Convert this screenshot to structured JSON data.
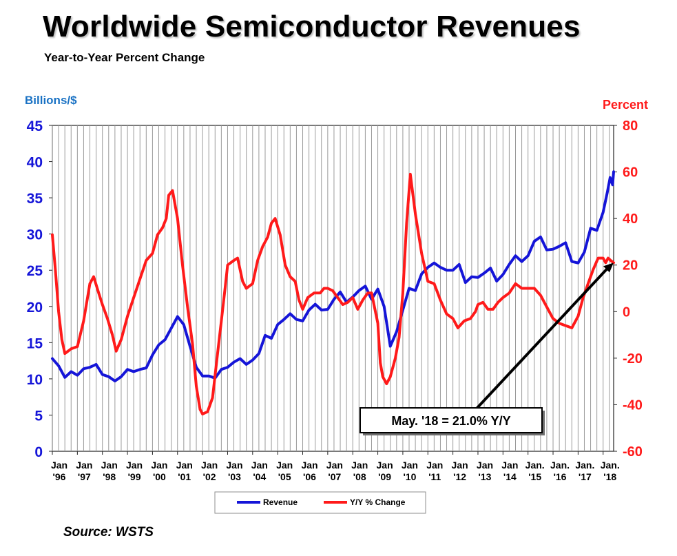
{
  "title": "Worldwide Semiconductor Revenues",
  "subtitle": "Year-to-Year Percent Change",
  "source": "Source: WSTS",
  "chart_data": {
    "type": "line",
    "left_axis": {
      "label": "Billions/$",
      "min": 0,
      "max": 45,
      "ticks": [
        0,
        5,
        10,
        15,
        20,
        25,
        30,
        35,
        40,
        45
      ],
      "color": "#1515d8"
    },
    "right_axis": {
      "label": "Percent",
      "min": -60,
      "max": 80,
      "ticks": [
        -60,
        -40,
        -20,
        0,
        20,
        40,
        60,
        80
      ],
      "color": "#ff1a1a"
    },
    "x_start": 1996.0,
    "x_end": 2018.42,
    "x_tick_labels": [
      [
        "Jan",
        "'96"
      ],
      [
        "Jan",
        "'97"
      ],
      [
        "Jan",
        "'98"
      ],
      [
        "Jan",
        "'99"
      ],
      [
        "Jan",
        "'00"
      ],
      [
        "Jan",
        "'01"
      ],
      [
        "Jan",
        "'02"
      ],
      [
        "Jan",
        "'03"
      ],
      [
        "Jan",
        "'04"
      ],
      [
        "Jan",
        "'05"
      ],
      [
        "Jan",
        "'06"
      ],
      [
        "Jan",
        "'07"
      ],
      [
        "Jan",
        "'08"
      ],
      [
        "Jan",
        "'09"
      ],
      [
        "Jan",
        "'10"
      ],
      [
        "Jan",
        "'11"
      ],
      [
        "Jan",
        "'12"
      ],
      [
        "Jan",
        "'13"
      ],
      [
        "Jan",
        "'14"
      ],
      [
        "Jan.",
        "'15"
      ],
      [
        "Jan.",
        "'16"
      ],
      [
        "Jan.",
        "'17"
      ],
      [
        "Jan.",
        "'18"
      ]
    ],
    "grid": "vertical",
    "series": [
      {
        "name": "Revenue",
        "axis": "left",
        "color": "#1515d8",
        "points": [
          [
            1996.0,
            12.8
          ],
          [
            1996.25,
            11.8
          ],
          [
            1996.5,
            10.2
          ],
          [
            1996.75,
            11.0
          ],
          [
            1997.0,
            10.5
          ],
          [
            1997.25,
            11.4
          ],
          [
            1997.5,
            11.6
          ],
          [
            1997.75,
            12.0
          ],
          [
            1998.0,
            10.6
          ],
          [
            1998.25,
            10.3
          ],
          [
            1998.5,
            9.7
          ],
          [
            1998.75,
            10.3
          ],
          [
            1999.0,
            11.3
          ],
          [
            1999.25,
            11.0
          ],
          [
            1999.5,
            11.3
          ],
          [
            1999.75,
            11.5
          ],
          [
            2000.0,
            13.3
          ],
          [
            2000.25,
            14.7
          ],
          [
            2000.5,
            15.4
          ],
          [
            2000.75,
            17.0
          ],
          [
            2001.0,
            18.6
          ],
          [
            2001.25,
            17.5
          ],
          [
            2001.5,
            14.5
          ],
          [
            2001.75,
            11.6
          ],
          [
            2002.0,
            10.4
          ],
          [
            2002.25,
            10.4
          ],
          [
            2002.5,
            10.1
          ],
          [
            2002.75,
            11.3
          ],
          [
            2003.0,
            11.6
          ],
          [
            2003.25,
            12.3
          ],
          [
            2003.5,
            12.8
          ],
          [
            2003.75,
            12.0
          ],
          [
            2004.0,
            12.6
          ],
          [
            2004.25,
            13.5
          ],
          [
            2004.5,
            16.0
          ],
          [
            2004.75,
            15.6
          ],
          [
            2005.0,
            17.5
          ],
          [
            2005.25,
            18.2
          ],
          [
            2005.5,
            19.0
          ],
          [
            2005.75,
            18.2
          ],
          [
            2006.0,
            18.0
          ],
          [
            2006.25,
            19.5
          ],
          [
            2006.5,
            20.3
          ],
          [
            2006.75,
            19.5
          ],
          [
            2007.0,
            19.6
          ],
          [
            2007.25,
            21.0
          ],
          [
            2007.5,
            22.0
          ],
          [
            2007.75,
            20.6
          ],
          [
            2008.0,
            21.3
          ],
          [
            2008.25,
            22.2
          ],
          [
            2008.5,
            22.8
          ],
          [
            2008.75,
            21.0
          ],
          [
            2009.0,
            22.4
          ],
          [
            2009.25,
            20.0
          ],
          [
            2009.5,
            14.5
          ],
          [
            2009.75,
            16.5
          ],
          [
            2010.0,
            19.5
          ],
          [
            2010.25,
            22.5
          ],
          [
            2010.5,
            22.2
          ],
          [
            2010.75,
            24.5
          ],
          [
            2011.0,
            25.4
          ],
          [
            2011.25,
            26.0
          ],
          [
            2011.5,
            25.4
          ],
          [
            2011.75,
            25.0
          ],
          [
            2012.0,
            25.0
          ],
          [
            2012.25,
            25.8
          ],
          [
            2012.5,
            23.3
          ],
          [
            2012.75,
            24.1
          ],
          [
            2013.0,
            24.0
          ],
          [
            2013.25,
            24.6
          ],
          [
            2013.5,
            25.3
          ],
          [
            2013.75,
            23.5
          ],
          [
            2014.0,
            24.4
          ],
          [
            2014.25,
            25.8
          ],
          [
            2014.5,
            27.0
          ],
          [
            2014.75,
            26.2
          ],
          [
            2015.0,
            27.0
          ],
          [
            2015.25,
            29.0
          ],
          [
            2015.5,
            29.6
          ],
          [
            2015.75,
            27.8
          ],
          [
            2016.0,
            27.9
          ],
          [
            2016.25,
            28.3
          ],
          [
            2016.5,
            28.8
          ],
          [
            2016.75,
            26.2
          ],
          [
            2017.0,
            26.0
          ],
          [
            2017.25,
            27.5
          ],
          [
            2017.5,
            30.8
          ],
          [
            2017.75,
            30.5
          ],
          [
            2018.0,
            33.0
          ],
          [
            2018.17,
            35.8
          ],
          [
            2018.28,
            37.8
          ],
          [
            2018.38,
            36.8
          ],
          [
            2018.42,
            38.6
          ]
        ]
      },
      {
        "name": "Y/Y % Change",
        "axis": "right",
        "color": "#ff1a1a",
        "points": [
          [
            1996.0,
            33
          ],
          [
            1996.12,
            18
          ],
          [
            1996.25,
            0
          ],
          [
            1996.38,
            -12
          ],
          [
            1996.5,
            -18
          ],
          [
            1996.75,
            -16
          ],
          [
            1997.0,
            -15
          ],
          [
            1997.25,
            -4
          ],
          [
            1997.5,
            12
          ],
          [
            1997.65,
            15
          ],
          [
            1997.85,
            8
          ],
          [
            1998.0,
            3
          ],
          [
            1998.2,
            -3
          ],
          [
            1998.4,
            -10
          ],
          [
            1998.55,
            -17
          ],
          [
            1998.75,
            -12
          ],
          [
            1999.0,
            -2
          ],
          [
            1999.25,
            6
          ],
          [
            1999.5,
            14
          ],
          [
            1999.75,
            22
          ],
          [
            2000.0,
            25
          ],
          [
            2000.2,
            33
          ],
          [
            2000.4,
            36
          ],
          [
            2000.55,
            40
          ],
          [
            2000.65,
            50
          ],
          [
            2000.8,
            52
          ],
          [
            2001.0,
            40
          ],
          [
            2001.2,
            20
          ],
          [
            2001.4,
            2
          ],
          [
            2001.6,
            -14
          ],
          [
            2001.75,
            -32
          ],
          [
            2001.9,
            -42
          ],
          [
            2002.0,
            -44
          ],
          [
            2002.2,
            -43
          ],
          [
            2002.4,
            -37
          ],
          [
            2002.6,
            -18
          ],
          [
            2002.75,
            -4
          ],
          [
            2002.9,
            10
          ],
          [
            2003.0,
            20
          ],
          [
            2003.25,
            22
          ],
          [
            2003.4,
            23
          ],
          [
            2003.6,
            13
          ],
          [
            2003.75,
            10
          ],
          [
            2004.0,
            12
          ],
          [
            2004.2,
            22
          ],
          [
            2004.4,
            28
          ],
          [
            2004.6,
            32
          ],
          [
            2004.75,
            38
          ],
          [
            2004.9,
            40
          ],
          [
            2005.1,
            33
          ],
          [
            2005.3,
            20
          ],
          [
            2005.5,
            15
          ],
          [
            2005.7,
            13
          ],
          [
            2005.85,
            5
          ],
          [
            2006.0,
            1
          ],
          [
            2006.2,
            6
          ],
          [
            2006.45,
            8
          ],
          [
            2006.7,
            8
          ],
          [
            2006.85,
            10
          ],
          [
            2007.0,
            10
          ],
          [
            2007.2,
            9
          ],
          [
            2007.4,
            6
          ],
          [
            2007.6,
            3
          ],
          [
            2007.8,
            4
          ],
          [
            2008.0,
            6
          ],
          [
            2008.2,
            1
          ],
          [
            2008.4,
            5
          ],
          [
            2008.6,
            8
          ],
          [
            2008.75,
            8
          ],
          [
            2009.0,
            -5
          ],
          [
            2009.1,
            -22
          ],
          [
            2009.2,
            -28
          ],
          [
            2009.35,
            -31
          ],
          [
            2009.5,
            -28
          ],
          [
            2009.7,
            -20
          ],
          [
            2009.85,
            -11
          ],
          [
            2010.0,
            8
          ],
          [
            2010.15,
            38
          ],
          [
            2010.3,
            59
          ],
          [
            2010.5,
            42
          ],
          [
            2010.75,
            25
          ],
          [
            2011.0,
            13
          ],
          [
            2011.25,
            12
          ],
          [
            2011.5,
            5
          ],
          [
            2011.75,
            -1
          ],
          [
            2012.0,
            -3
          ],
          [
            2012.2,
            -7
          ],
          [
            2012.45,
            -4
          ],
          [
            2012.7,
            -3
          ],
          [
            2012.9,
            0
          ],
          [
            2013.0,
            3
          ],
          [
            2013.2,
            4
          ],
          [
            2013.4,
            1
          ],
          [
            2013.6,
            1
          ],
          [
            2013.8,
            4
          ],
          [
            2014.0,
            6
          ],
          [
            2014.25,
            8
          ],
          [
            2014.5,
            12
          ],
          [
            2014.75,
            10
          ],
          [
            2015.0,
            10
          ],
          [
            2015.25,
            10
          ],
          [
            2015.5,
            7
          ],
          [
            2015.75,
            2
          ],
          [
            2016.0,
            -3
          ],
          [
            2016.25,
            -5
          ],
          [
            2016.5,
            -6
          ],
          [
            2016.75,
            -7
          ],
          [
            2017.0,
            -2
          ],
          [
            2017.2,
            6
          ],
          [
            2017.4,
            12
          ],
          [
            2017.6,
            18
          ],
          [
            2017.8,
            23
          ],
          [
            2018.0,
            23
          ],
          [
            2018.1,
            21
          ],
          [
            2018.2,
            23
          ],
          [
            2018.3,
            22
          ],
          [
            2018.42,
            21
          ]
        ]
      }
    ],
    "annotation": {
      "text": "May. '18 = 21.0% Y/Y",
      "x": 2018.42,
      "y": 21.0,
      "axis": "right"
    },
    "legend": {
      "placement": "bottom-center",
      "entries": [
        "Revenue",
        "Y/Y % Change"
      ]
    }
  }
}
